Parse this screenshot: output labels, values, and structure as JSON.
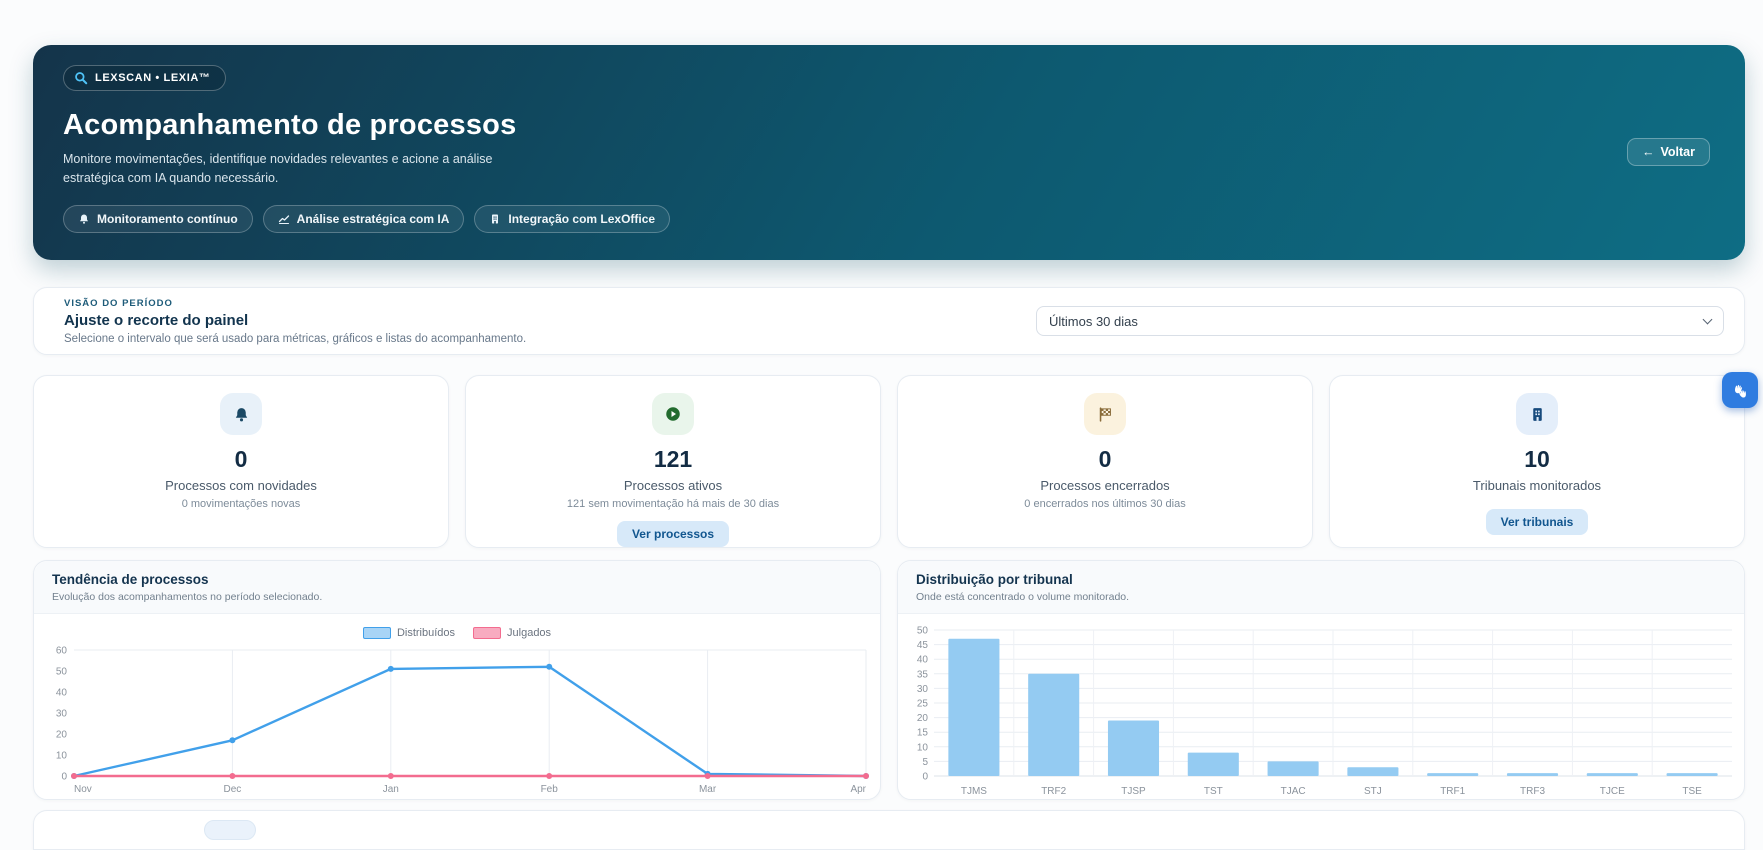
{
  "banner": {
    "badge": "LEXSCAN • LEXIA™",
    "title": "Acompanhamento de processos",
    "subtitle": "Monitore movimentações, identifique novidades relevantes e acione a análise estratégica com IA quando necessário.",
    "chips": {
      "monitoring": "Monitoramento contínuo",
      "analysis": "Análise estratégica com IA",
      "integration": "Integração com LexOffice"
    },
    "back_arrow": "←",
    "back_label": "Voltar"
  },
  "period": {
    "eyebrow": "VISÃO DO PERÍODO",
    "title": "Ajuste o recorte do painel",
    "subtitle": "Selecione o intervalo que será usado para métricas, gráficos e listas do acompanhamento.",
    "select_value": "Últimos 30 dias"
  },
  "stats": {
    "novidades": {
      "value": "0",
      "label": "Processos com novidades",
      "sublabel": "0 movimentações novas",
      "icon": "bell-icon"
    },
    "ativos": {
      "value": "121",
      "label": "Processos ativos",
      "sublabel": "121 sem movimentação há mais de 30 dias",
      "button": "Ver processos",
      "icon": "play-icon"
    },
    "encerrados": {
      "value": "0",
      "label": "Processos encerrados",
      "sublabel": "0 encerrados nos últimos 30 dias",
      "icon": "checkered-flag-icon"
    },
    "tribunais": {
      "value": "10",
      "label": "Tribunais monitorados",
      "button": "Ver tribunais",
      "icon": "building-icon"
    }
  },
  "chart_data": [
    {
      "type": "line",
      "title": "Tendência de processos",
      "subtitle": "Evolução dos acompanhamentos no período selecionado.",
      "x": [
        "Nov",
        "Dec",
        "Jan",
        "Feb",
        "Mar",
        "Apr"
      ],
      "series": [
        {
          "name": "Distribuídos",
          "color": "#41a0ea",
          "swatch_fill": "#a8d4f6",
          "values": [
            0,
            17,
            51,
            52,
            1,
            0
          ]
        },
        {
          "name": "Julgados",
          "color": "#f36c8f",
          "swatch_fill": "#f8abc0",
          "values": [
            0,
            0,
            0,
            0,
            0,
            0
          ]
        }
      ],
      "ylim": [
        0,
        60
      ],
      "yticks": [
        0,
        10,
        20,
        30,
        40,
        50,
        60
      ],
      "legend_position": "top",
      "grid": "vertical"
    },
    {
      "type": "bar",
      "title": "Distribuição por tribunal",
      "subtitle": "Onde está concentrado o volume monitorado.",
      "categories": [
        "TJMS",
        "TRF2",
        "TJSP",
        "TST",
        "TJAC",
        "STJ",
        "TRF1",
        "TRF3",
        "TJCE",
        "TSE"
      ],
      "values": [
        47,
        35,
        19,
        8,
        5,
        3,
        1,
        1,
        1,
        1
      ],
      "bar_color": "#94cbf2",
      "ylim": [
        0,
        50
      ],
      "yticks": [
        0,
        5,
        10,
        15,
        20,
        25,
        30,
        35,
        40,
        45,
        50
      ],
      "grid": "both"
    }
  ],
  "colors": {
    "banner_gradient_start": "#14344a",
    "banner_gradient_end": "#0e6d84",
    "accent_blue": "#41a0ea",
    "accent_pink": "#f36c8f",
    "bar_fill": "#94cbf2",
    "button_bg": "#d7e9f9",
    "button_text": "#11568f",
    "widget_blue": "#2f7ce0"
  }
}
